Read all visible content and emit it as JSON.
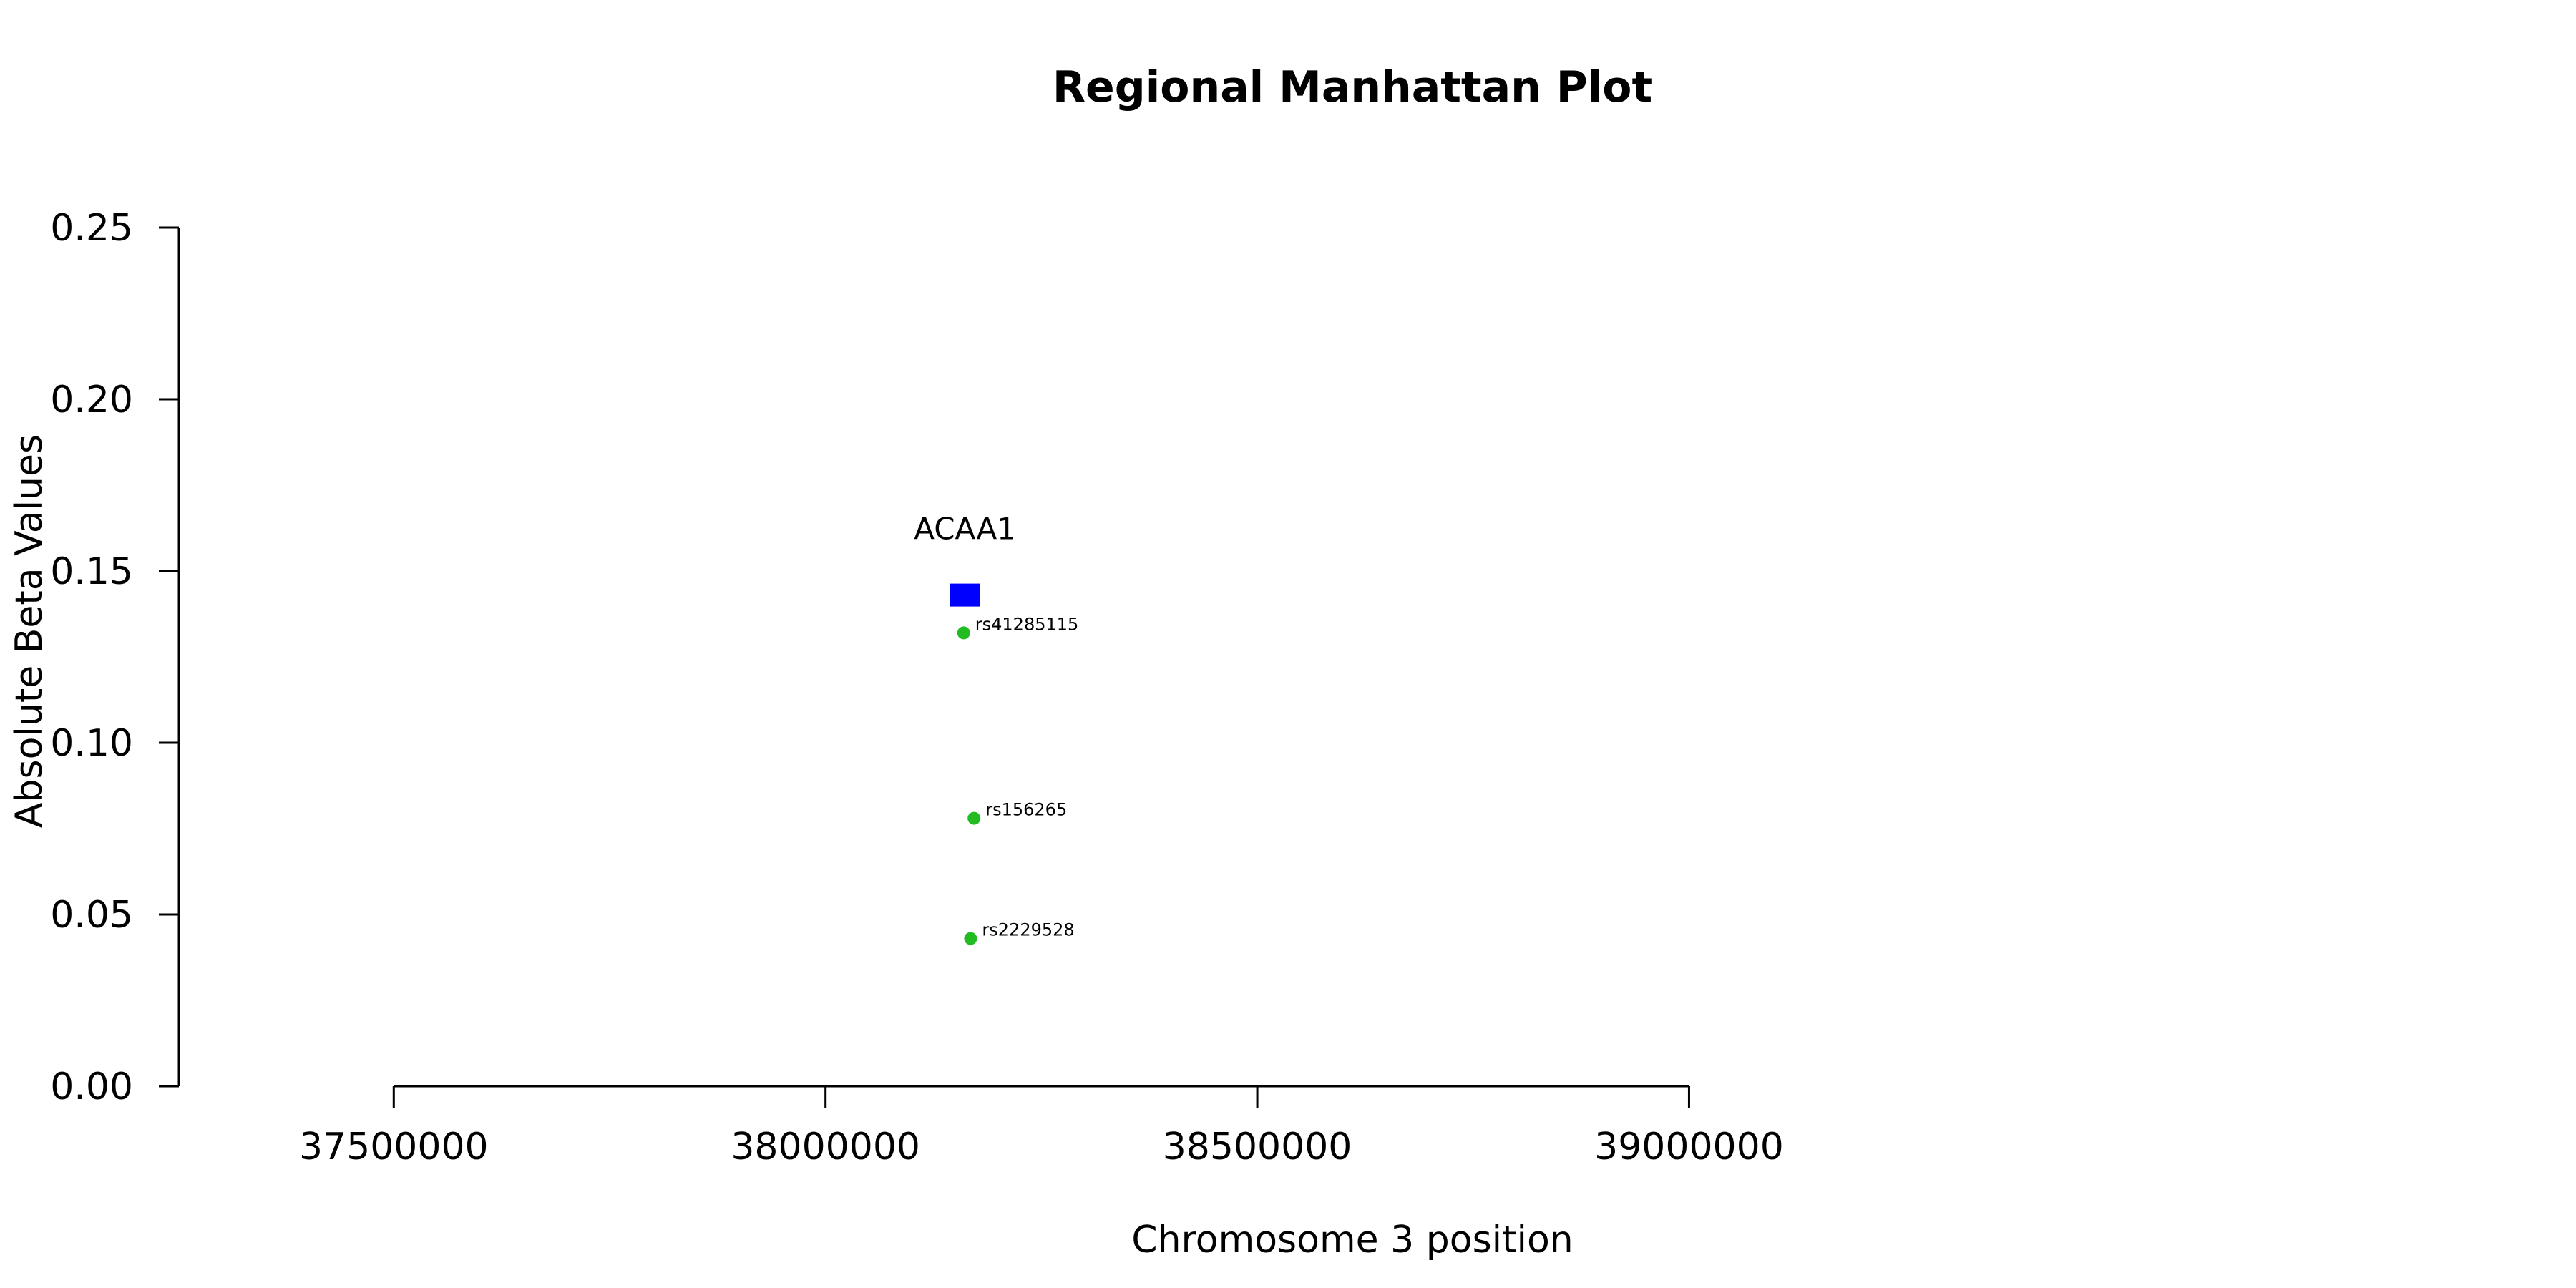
{
  "chart_data": {
    "type": "scatter",
    "title": "Regional Manhattan Plot",
    "xlabel": "Chromosome 3 position",
    "ylabel": "Absolute Beta Values",
    "xlim": [
      37160000,
      39820000
    ],
    "ylim": [
      0,
      0.25
    ],
    "x_ticks": [
      37500000,
      38000000,
      38500000,
      39000000
    ],
    "x_tick_labels": [
      "37500000",
      "38000000",
      "38500000",
      "39000000"
    ],
    "y_ticks": [
      0,
      0.05,
      0.1,
      0.15,
      0.2,
      0.25
    ],
    "y_tick_labels": [
      "0.00",
      "0.05",
      "0.10",
      "0.15",
      "0.20",
      "0.25"
    ],
    "grid": false,
    "point_color": "#22bb22",
    "gene_color": "#0000ff",
    "points": [
      {
        "x": 38160000,
        "y": 0.132,
        "label": "rs41285115"
      },
      {
        "x": 38172000,
        "y": 0.078,
        "label": "rs156265"
      },
      {
        "x": 38168000,
        "y": 0.043,
        "label": "rs2229528"
      }
    ],
    "genes": [
      {
        "name": "ACAA1",
        "start": 38144000,
        "end": 38179000,
        "y": 0.143
      }
    ]
  }
}
